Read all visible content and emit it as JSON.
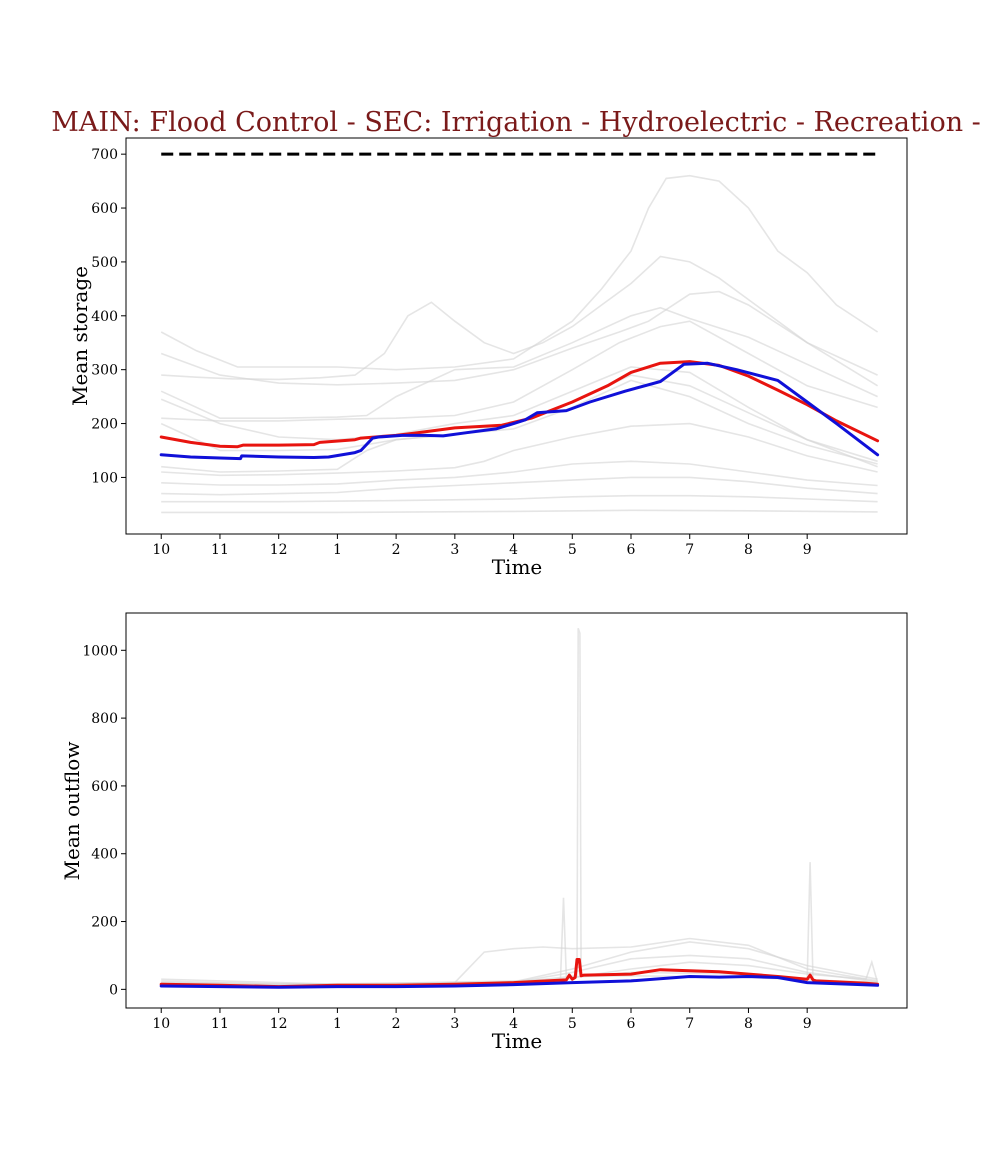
{
  "title": "MAIN: Flood Control - SEC: Irrigation - Hydroelectric - Recreation -",
  "colors": {
    "title": "#7a1a1a",
    "red": "#e8140f",
    "blue": "#1010d8",
    "grey": "#d3d3d3",
    "cap": "#000000"
  },
  "chart_data": [
    {
      "type": "line",
      "ylabel": "Mean storage",
      "xlabel": "Time",
      "xlim": [
        -0.6,
        12.7
      ],
      "ylim": [
        -5,
        730
      ],
      "xticks": [
        0,
        1,
        2,
        3,
        4,
        5,
        6,
        7,
        8,
        9,
        10,
        11
      ],
      "xtick_labels": [
        "10",
        "11",
        "12",
        "1",
        "2",
        "3",
        "4",
        "5",
        "6",
        "7",
        "8",
        "9"
      ],
      "yticks": [
        100,
        200,
        300,
        400,
        500,
        600,
        700
      ],
      "ytick_labels": [
        "100",
        "200",
        "300",
        "400",
        "500",
        "600",
        "700"
      ],
      "capacity_line": {
        "y": 700,
        "x0": 0,
        "x1": 12.2
      },
      "series": [
        {
          "name": "red",
          "color": "#e8140f",
          "x": [
            0,
            0.5,
            1,
            1.3,
            1.4,
            2,
            2.6,
            2.7,
            3.3,
            3.4,
            4,
            4.3,
            5,
            5.8,
            6.3,
            7,
            7.6,
            8,
            8.5,
            9,
            9.5,
            10,
            10.5,
            11,
            11.5,
            12.2
          ],
          "y": [
            175,
            165,
            158,
            157,
            160,
            160,
            161,
            165,
            170,
            173,
            178,
            182,
            192,
            197,
            210,
            240,
            270,
            295,
            312,
            315,
            308,
            288,
            262,
            235,
            205,
            168
          ]
        },
        {
          "name": "blue",
          "color": "#1010d8",
          "x": [
            0,
            0.5,
            1,
            1.35,
            1.37,
            2,
            2.6,
            2.85,
            3.3,
            3.4,
            3.6,
            3.7,
            4.1,
            4.5,
            4.8,
            5.2,
            5.7,
            6.0,
            6.2,
            6.4,
            6.9,
            7.3,
            7.9,
            8.5,
            8.9,
            9.3,
            9.8,
            10.5,
            11,
            11.5,
            12.2
          ],
          "y": [
            142,
            138,
            136,
            135,
            140,
            138,
            137,
            138,
            146,
            150,
            173,
            175,
            178,
            178,
            177,
            183,
            190,
            200,
            207,
            220,
            224,
            240,
            260,
            278,
            310,
            312,
            300,
            280,
            240,
            200,
            142
          ]
        },
        {
          "name": "bg1",
          "x": [
            0,
            0.6,
            1,
            1.3,
            2,
            3,
            4,
            5,
            6,
            7,
            7.5,
            8,
            8.3,
            8.6,
            9,
            9.5,
            10,
            10.5,
            11,
            11.5,
            12.2
          ],
          "y": [
            370,
            335,
            318,
            305,
            305,
            305,
            300,
            305,
            320,
            390,
            450,
            520,
            600,
            655,
            660,
            650,
            600,
            520,
            480,
            420,
            370
          ]
        },
        {
          "name": "bg2",
          "x": [
            0,
            0.6,
            1.2,
            2,
            2.7,
            3.3,
            3.8,
            4.2,
            4.6,
            5,
            5.5,
            6,
            6.5,
            7,
            7.5,
            8,
            8.5,
            9,
            9.5,
            10,
            11,
            12.2
          ],
          "y": [
            290,
            286,
            283,
            282,
            285,
            290,
            330,
            400,
            425,
            390,
            350,
            330,
            350,
            380,
            420,
            460,
            510,
            500,
            470,
            430,
            350,
            290
          ]
        },
        {
          "name": "bg3",
          "x": [
            0,
            1,
            2,
            3,
            4,
            5,
            6,
            7,
            7.8,
            8.3,
            9,
            9.5,
            10,
            11,
            12.2
          ],
          "y": [
            330,
            290,
            275,
            272,
            275,
            280,
            300,
            340,
            370,
            390,
            440,
            445,
            420,
            350,
            270
          ]
        },
        {
          "name": "bg4",
          "x": [
            0,
            1,
            2,
            3,
            3.5,
            4,
            5,
            6,
            7,
            8,
            8.5,
            9,
            10,
            11,
            12.2
          ],
          "y": [
            260,
            210,
            210,
            212,
            215,
            250,
            300,
            305,
            350,
            400,
            415,
            395,
            360,
            310,
            250
          ]
        },
        {
          "name": "bg5",
          "x": [
            0,
            1,
            2,
            3,
            4,
            5,
            6,
            7,
            7.8,
            8.5,
            9,
            10,
            11,
            12.2
          ],
          "y": [
            210,
            205,
            205,
            208,
            210,
            215,
            240,
            300,
            350,
            380,
            390,
            330,
            270,
            230
          ]
        },
        {
          "name": "bg6",
          "x": [
            0,
            1,
            2,
            3,
            4,
            5,
            6,
            7,
            8,
            9,
            10,
            11,
            12.2
          ],
          "y": [
            245,
            200,
            175,
            170,
            180,
            200,
            215,
            260,
            305,
            295,
            230,
            170,
            130
          ]
        },
        {
          "name": "bg7",
          "x": [
            0,
            1,
            2,
            3,
            4,
            5,
            6,
            7,
            8,
            9,
            10,
            11,
            12.2
          ],
          "y": [
            200,
            150,
            150,
            152,
            170,
            180,
            200,
            240,
            290,
            270,
            220,
            170,
            120
          ]
        },
        {
          "name": "bg8",
          "x": [
            0,
            1,
            2,
            3,
            3.5,
            4,
            5,
            6,
            7,
            8,
            9,
            10,
            11,
            12.2
          ],
          "y": [
            120,
            110,
            112,
            115,
            150,
            170,
            180,
            190,
            230,
            280,
            250,
            200,
            160,
            125
          ]
        },
        {
          "name": "bg9",
          "x": [
            0,
            1,
            2,
            3,
            4,
            5,
            5.5,
            6,
            7,
            8,
            9,
            10,
            11,
            12.2
          ],
          "y": [
            110,
            104,
            105,
            108,
            112,
            118,
            130,
            150,
            175,
            195,
            200,
            175,
            140,
            110
          ]
        },
        {
          "name": "bg10",
          "x": [
            0,
            1,
            2,
            3,
            4,
            5,
            6,
            7,
            8,
            9,
            10,
            11,
            12.2
          ],
          "y": [
            90,
            86,
            86,
            88,
            95,
            100,
            110,
            125,
            130,
            125,
            110,
            95,
            85
          ]
        },
        {
          "name": "bg11",
          "x": [
            0,
            1,
            2,
            3,
            4,
            5,
            6,
            7,
            8,
            9,
            10,
            11,
            12.2
          ],
          "y": [
            70,
            68,
            70,
            72,
            80,
            85,
            90,
            95,
            100,
            100,
            92,
            80,
            70
          ]
        },
        {
          "name": "bg12",
          "x": [
            0,
            2,
            4,
            6,
            7,
            8,
            9,
            10,
            11,
            12.2
          ],
          "y": [
            55,
            55,
            57,
            60,
            64,
            66,
            66,
            64,
            60,
            55
          ]
        },
        {
          "name": "bg13",
          "x": [
            0,
            3,
            6,
            8,
            10,
            12.2
          ],
          "y": [
            35,
            35,
            37,
            39,
            38,
            36
          ]
        }
      ]
    },
    {
      "type": "line",
      "ylabel": "Mean outflow",
      "xlabel": "Time",
      "xlim": [
        -0.6,
        12.7
      ],
      "ylim": [
        -55,
        1110
      ],
      "xticks": [
        0,
        1,
        2,
        3,
        4,
        5,
        6,
        7,
        8,
        9,
        10,
        11
      ],
      "xtick_labels": [
        "10",
        "11",
        "12",
        "1",
        "2",
        "3",
        "4",
        "5",
        "6",
        "7",
        "8",
        "9"
      ],
      "yticks": [
        0,
        200,
        400,
        600,
        800,
        1000
      ],
      "ytick_labels": [
        "0",
        "200",
        "400",
        "600",
        "800",
        "1000"
      ],
      "series": [
        {
          "name": "red",
          "color": "#e8140f",
          "x": [
            0,
            1,
            2,
            3,
            4,
            5,
            6,
            6.9,
            6.95,
            7.0,
            7.05,
            7.08,
            7.12,
            7.15,
            7.2,
            8,
            8.5,
            9,
            9.5,
            10,
            10.5,
            11,
            11.05,
            11.1,
            11.15,
            12,
            12.2
          ],
          "y": [
            15,
            12,
            8,
            12,
            12,
            15,
            20,
            28,
            42,
            30,
            35,
            88,
            88,
            40,
            42,
            45,
            58,
            55,
            52,
            45,
            38,
            30,
            42,
            28,
            25,
            18,
            15
          ]
        },
        {
          "name": "blue",
          "color": "#1010d8",
          "x": [
            0,
            1,
            2,
            3,
            4,
            5,
            6,
            7,
            8,
            9,
            9.5,
            10,
            10.5,
            11,
            12.2
          ],
          "y": [
            10,
            8,
            6,
            8,
            8,
            10,
            14,
            20,
            25,
            38,
            36,
            38,
            35,
            20,
            12
          ]
        },
        {
          "name": "bg1",
          "x": [
            0,
            3,
            6,
            7.08,
            7.1,
            7.13,
            7.15,
            7.2,
            8,
            10,
            12.2
          ],
          "y": [
            15,
            10,
            20,
            40,
            1065,
            1050,
            40,
            38,
            40,
            35,
            20
          ]
        },
        {
          "name": "bg2",
          "x": [
            0,
            3,
            6,
            6.8,
            6.85,
            6.9,
            7,
            8,
            10,
            11,
            11.05,
            11.1,
            12.2
          ],
          "y": [
            20,
            15,
            25,
            30,
            270,
            30,
            35,
            50,
            45,
            30,
            375,
            28,
            20
          ]
        },
        {
          "name": "bg3",
          "x": [
            0,
            2,
            4,
            5,
            5.5,
            6,
            6.5,
            7,
            8,
            9,
            10,
            11,
            12.2
          ],
          "y": [
            18,
            12,
            15,
            20,
            110,
            120,
            125,
            120,
            125,
            150,
            130,
            60,
            25
          ]
        },
        {
          "name": "bg4",
          "x": [
            0,
            2,
            4,
            6,
            7,
            8,
            9,
            10,
            11,
            12.2
          ],
          "y": [
            25,
            15,
            18,
            22,
            60,
            110,
            140,
            120,
            70,
            30
          ]
        },
        {
          "name": "bg5",
          "x": [
            0,
            2,
            4,
            6,
            7,
            8,
            9,
            10,
            11,
            12.2
          ],
          "y": [
            12,
            10,
            12,
            20,
            50,
            90,
            100,
            90,
            50,
            22
          ]
        },
        {
          "name": "bg6",
          "x": [
            0,
            2,
            4,
            6,
            7,
            8,
            9,
            10,
            11,
            12,
            12.1,
            12.2
          ],
          "y": [
            30,
            20,
            10,
            12,
            35,
            60,
            80,
            70,
            45,
            30,
            80,
            20
          ]
        }
      ]
    }
  ]
}
